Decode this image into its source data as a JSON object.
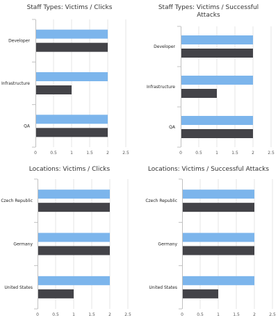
{
  "colors": {
    "series1": "#7cb5ec",
    "series2": "#434348",
    "grid": "#e6e6e6",
    "axis": "#c0c0c0"
  },
  "chart_data": [
    {
      "type": "bar",
      "orientation": "horizontal",
      "title_lines": [
        "Staff Types: Victims / Clicks"
      ],
      "categories": [
        "Developer",
        "Infrastructure",
        "QA"
      ],
      "series": [
        {
          "values": [
            2,
            2,
            2
          ]
        },
        {
          "values": [
            2,
            1,
            2
          ]
        }
      ],
      "xlim": [
        0,
        2.5
      ],
      "xticks": [
        "0",
        "0.5",
        "1",
        "1.5",
        "2",
        "2.5"
      ],
      "grid": true
    },
    {
      "type": "bar",
      "orientation": "horizontal",
      "title_lines": [
        "Staff Types: Victims / Successful",
        "Attacks"
      ],
      "categories": [
        "Developer",
        "Infrastructure",
        "QA"
      ],
      "series": [
        {
          "values": [
            2,
            2,
            2
          ]
        },
        {
          "values": [
            2,
            1,
            2
          ]
        }
      ],
      "xlim": [
        0,
        2.5
      ],
      "xticks": [
        "0",
        "0.5",
        "1",
        "1.5",
        "2",
        "2.5"
      ],
      "grid": true
    },
    {
      "type": "bar",
      "orientation": "horizontal",
      "title_lines": [
        "Locations: Victims / Clicks"
      ],
      "categories": [
        "Czech Republic",
        "Germany",
        "United States"
      ],
      "series": [
        {
          "values": [
            2,
            2,
            2
          ]
        },
        {
          "values": [
            2,
            2,
            1
          ]
        }
      ],
      "xlim": [
        0,
        2.5
      ],
      "xticks": [
        "0",
        "0.5",
        "1",
        "1.5",
        "2",
        "2.5"
      ],
      "grid": true
    },
    {
      "type": "bar",
      "orientation": "horizontal",
      "title_lines": [
        "Locations: Victims / Successful Attacks"
      ],
      "categories": [
        "Czech Republic",
        "Germany",
        "United States"
      ],
      "series": [
        {
          "values": [
            2,
            2,
            2
          ]
        },
        {
          "values": [
            2,
            2,
            1
          ]
        }
      ],
      "xlim": [
        0,
        2.5
      ],
      "xticks": [
        "0",
        "0.5",
        "1",
        "1.5",
        "2",
        "2.5"
      ],
      "grid": true
    }
  ]
}
